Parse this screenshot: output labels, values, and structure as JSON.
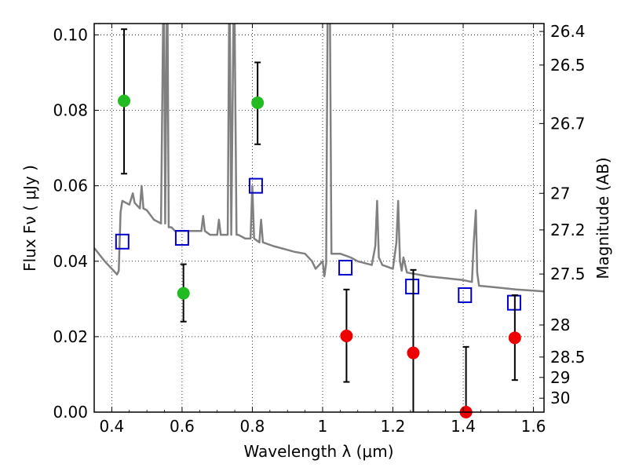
{
  "chart_data": {
    "type": "scatter",
    "xlabel": "Wavelength  λ (μm)",
    "ylabel": "Flux  Fν  ( μJy )",
    "y2label": "Magnitude (AB)",
    "xlim": [
      0.35,
      1.63
    ],
    "ylim": [
      0.0,
      0.103
    ],
    "grid": true,
    "x_ticks": [
      0.4,
      0.6,
      0.8,
      1.0,
      1.2,
      1.4,
      1.6
    ],
    "x_tick_labels": [
      "0.4",
      "0.6",
      "0.8",
      "1",
      "1.2",
      "1.4",
      "1.6"
    ],
    "y_ticks": [
      0.0,
      0.02,
      0.04,
      0.06,
      0.08,
      0.1
    ],
    "y_tick_labels": [
      "0.00",
      "0.02",
      "0.04",
      "0.06",
      "0.08",
      "0.10"
    ],
    "y2_ticks": [
      {
        "label": "26.4",
        "flux": 0.1009
      },
      {
        "label": "26.5",
        "flux": 0.092
      },
      {
        "label": "26.7",
        "flux": 0.0765
      },
      {
        "label": "27",
        "flux": 0.058
      },
      {
        "label": "27.2",
        "flux": 0.0483
      },
      {
        "label": "27.5",
        "flux": 0.0366
      },
      {
        "label": "28",
        "flux": 0.0231
      },
      {
        "label": "28.5",
        "flux": 0.0146
      },
      {
        "label": "29",
        "flux": 0.0092
      },
      {
        "label": "30",
        "flux": 0.0037
      }
    ],
    "series": [
      {
        "kind": "line",
        "color": "#808080",
        "points": [
          [
            0.35,
            0.0435
          ],
          [
            0.38,
            0.04
          ],
          [
            0.4,
            0.038
          ],
          [
            0.41,
            0.037
          ],
          [
            0.415,
            0.0365
          ],
          [
            0.42,
            0.0375
          ],
          [
            0.425,
            0.053
          ],
          [
            0.43,
            0.056
          ],
          [
            0.44,
            0.0555
          ],
          [
            0.45,
            0.055
          ],
          [
            0.46,
            0.058
          ],
          [
            0.465,
            0.0555
          ],
          [
            0.48,
            0.054
          ],
          [
            0.485,
            0.06
          ],
          [
            0.49,
            0.054
          ],
          [
            0.5,
            0.0535
          ],
          [
            0.52,
            0.051
          ],
          [
            0.54,
            0.05
          ],
          [
            0.548,
            0.12
          ],
          [
            0.552,
            0.05
          ],
          [
            0.558,
            0.12
          ],
          [
            0.562,
            0.049
          ],
          [
            0.57,
            0.049
          ],
          [
            0.58,
            0.048
          ],
          [
            0.6,
            0.048
          ],
          [
            0.62,
            0.048
          ],
          [
            0.64,
            0.048
          ],
          [
            0.655,
            0.048
          ],
          [
            0.66,
            0.052
          ],
          [
            0.665,
            0.048
          ],
          [
            0.68,
            0.047
          ],
          [
            0.7,
            0.047
          ],
          [
            0.705,
            0.051
          ],
          [
            0.71,
            0.047
          ],
          [
            0.73,
            0.047
          ],
          [
            0.735,
            0.12
          ],
          [
            0.74,
            0.047
          ],
          [
            0.748,
            0.12
          ],
          [
            0.755,
            0.047
          ],
          [
            0.76,
            0.047
          ],
          [
            0.78,
            0.046
          ],
          [
            0.795,
            0.046
          ],
          [
            0.8,
            0.06
          ],
          [
            0.805,
            0.046
          ],
          [
            0.82,
            0.045
          ],
          [
            0.825,
            0.051
          ],
          [
            0.83,
            0.045
          ],
          [
            0.86,
            0.044
          ],
          [
            0.9,
            0.043
          ],
          [
            0.92,
            0.0425
          ],
          [
            0.95,
            0.042
          ],
          [
            0.97,
            0.04
          ],
          [
            0.98,
            0.038
          ],
          [
            0.99,
            0.039
          ],
          [
            1.0,
            0.04
          ],
          [
            1.005,
            0.036
          ],
          [
            1.01,
            0.0395
          ],
          [
            1.015,
            0.12
          ],
          [
            1.02,
            0.12
          ],
          [
            1.025,
            0.042
          ],
          [
            1.05,
            0.042
          ],
          [
            1.08,
            0.041
          ],
          [
            1.1,
            0.04
          ],
          [
            1.14,
            0.039
          ],
          [
            1.15,
            0.044
          ],
          [
            1.155,
            0.056
          ],
          [
            1.16,
            0.041
          ],
          [
            1.17,
            0.039
          ],
          [
            1.2,
            0.038
          ],
          [
            1.21,
            0.045
          ],
          [
            1.215,
            0.056
          ],
          [
            1.22,
            0.04
          ],
          [
            1.225,
            0.0375
          ],
          [
            1.23,
            0.041
          ],
          [
            1.24,
            0.037
          ],
          [
            1.3,
            0.036
          ],
          [
            1.35,
            0.0355
          ],
          [
            1.4,
            0.035
          ],
          [
            1.425,
            0.0345
          ],
          [
            1.43,
            0.045
          ],
          [
            1.436,
            0.0535
          ],
          [
            1.44,
            0.037
          ],
          [
            1.445,
            0.0335
          ],
          [
            1.5,
            0.033
          ],
          [
            1.55,
            0.0325
          ],
          [
            1.6,
            0.0322
          ],
          [
            1.63,
            0.032
          ]
        ]
      },
      {
        "kind": "open-square",
        "color": "#0000cc",
        "points": [
          [
            0.43,
            0.0452
          ],
          [
            0.6,
            0.0462
          ],
          [
            0.81,
            0.06
          ],
          [
            1.065,
            0.0383
          ],
          [
            1.255,
            0.0333
          ],
          [
            1.405,
            0.031
          ],
          [
            1.545,
            0.029
          ]
        ]
      },
      {
        "kind": "circle-errorbar",
        "color": "#22bb22",
        "points": [
          {
            "x": 0.435,
            "y": 0.0825,
            "ylo": 0.0632,
            "yhi": 0.1015
          },
          {
            "x": 0.604,
            "y": 0.0315,
            "ylo": 0.024,
            "yhi": 0.0392
          },
          {
            "x": 0.815,
            "y": 0.082,
            "ylo": 0.071,
            "yhi": 0.0927
          }
        ]
      },
      {
        "kind": "circle-errorbar",
        "color": "#ee0000",
        "points": [
          {
            "x": 1.068,
            "y": 0.0202,
            "ylo": 0.008,
            "yhi": 0.0325
          },
          {
            "x": 1.258,
            "y": 0.0157,
            "ylo": 0.0,
            "yhi": 0.0377
          },
          {
            "x": 1.408,
            "y": 0.0,
            "ylo": 0.0,
            "yhi": 0.0173
          },
          {
            "x": 1.547,
            "y": 0.0197,
            "ylo": 0.0085,
            "yhi": 0.031
          }
        ]
      }
    ]
  }
}
